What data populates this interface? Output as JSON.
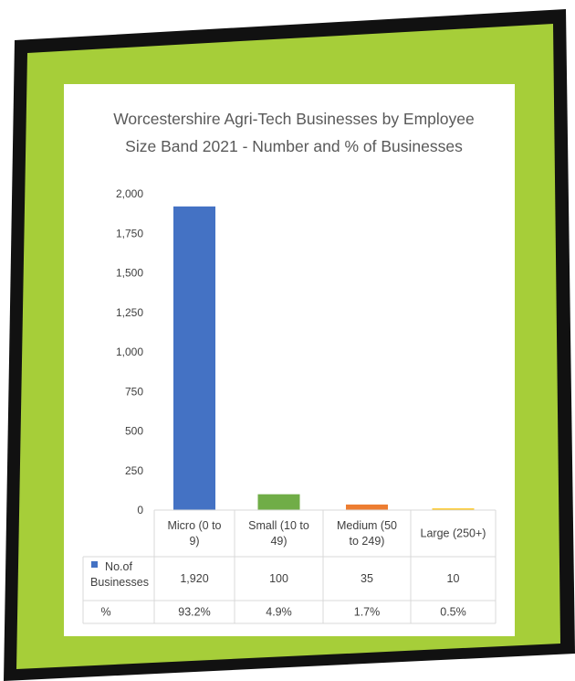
{
  "colors": {
    "frame_outer": "#111111",
    "frame_green": "#a6ce39",
    "micro": "#4472c4",
    "small": "#70ad47",
    "medium": "#ed7d31",
    "large": "#ffc000",
    "grid": "#d9d9d9"
  },
  "chart_data": {
    "type": "bar",
    "title_lines": [
      "Worcestershire  Agri-Tech Businesses by Employee",
      "Size Band 2021 - Number and % of Businesses"
    ],
    "categories": [
      [
        "Micro (0 to",
        "9)"
      ],
      [
        "Small (10 to",
        "49)"
      ],
      [
        "Medium (50",
        "to 249)"
      ],
      [
        "Large (250+)"
      ]
    ],
    "series": [
      {
        "name_lines": [
          "No.of",
          "Businesses"
        ],
        "values": [
          1920,
          100,
          35,
          10
        ]
      }
    ],
    "value_labels": [
      "1,920",
      "100",
      "35",
      "10"
    ],
    "bar_colors": [
      "#4472c4",
      "#70ad47",
      "#ed7d31",
      "#ffc000"
    ],
    "table_rows": [
      {
        "label": "%",
        "values": [
          "93.2%",
          "4.9%",
          "1.7%",
          "0.5%"
        ]
      }
    ],
    "yticks": [
      "0",
      "250",
      "500",
      "750",
      "1,000",
      "1,250",
      "1,500",
      "1,750",
      "2,000"
    ],
    "ylim": [
      0,
      2000
    ],
    "grid": false,
    "legend": "data-table"
  }
}
